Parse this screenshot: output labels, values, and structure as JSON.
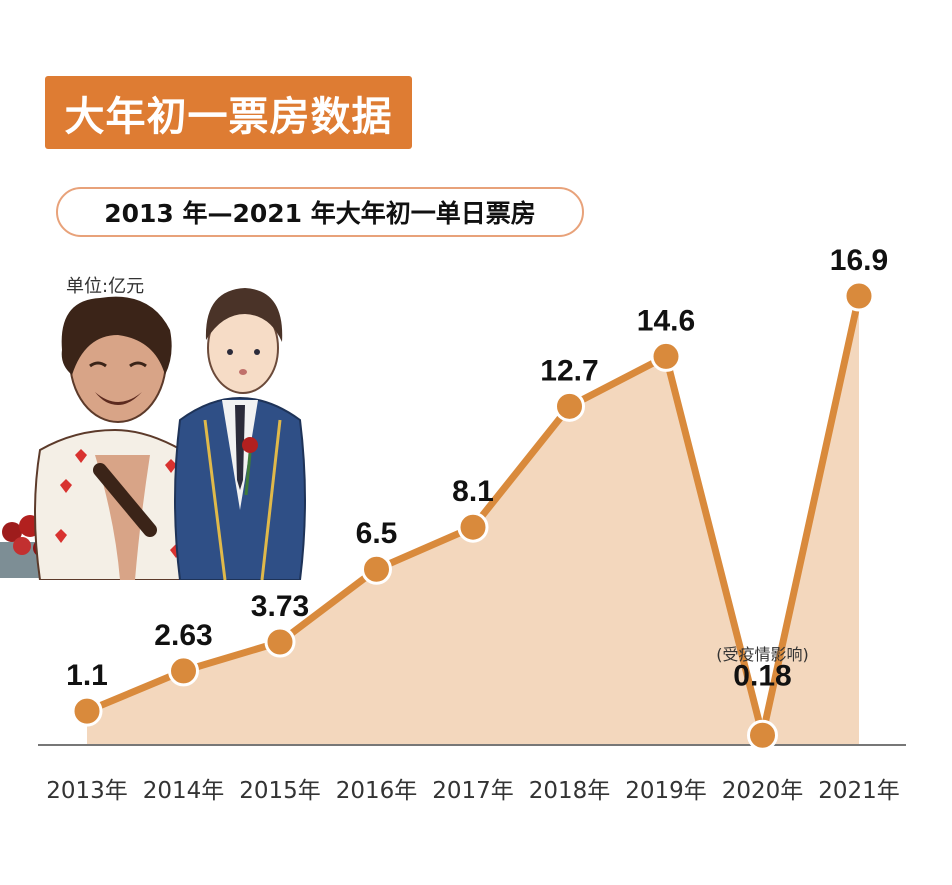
{
  "banner": {
    "title": "大年初一票房数据"
  },
  "subtitle": "2013 年—2021 年大年初一单日票房",
  "unit": "单位:亿元",
  "colors": {
    "accent": "#de7c33",
    "line": "#d98a3c",
    "area": "#f3d7bd",
    "axis": "#777777"
  },
  "chart_data": {
    "type": "area",
    "title": "2013 年—2021 年大年初一单日票房",
    "ylabel": "单位:亿元",
    "categories": [
      "2013年",
      "2014年",
      "2015年",
      "2016年",
      "2017年",
      "2018年",
      "2019年",
      "2020年",
      "2021年"
    ],
    "values": [
      1.1,
      2.63,
      3.73,
      6.5,
      8.1,
      12.7,
      14.6,
      0.18,
      16.9
    ],
    "labels": [
      "1.1",
      "2.63",
      "3.73",
      "6.5",
      "8.1",
      "12.7",
      "14.6",
      "0.18",
      "16.9"
    ],
    "annotations": [
      {
        "category": "2020年",
        "text": "(受疫情影响)"
      }
    ],
    "ylim": [
      0,
      16.9
    ],
    "grid": false,
    "legend": "none"
  }
}
